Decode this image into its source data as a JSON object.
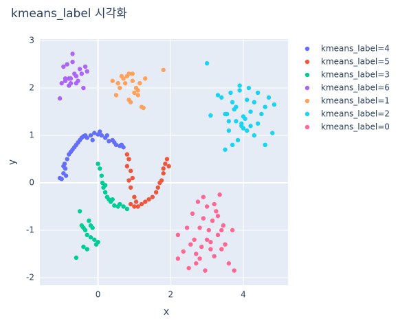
{
  "chart_data": {
    "type": "scatter",
    "title": "kmeans_label 시각화",
    "x_label": "x",
    "y_label": "y",
    "xlim": [
      -1.6,
      5.23
    ],
    "ylim": [
      -2.16,
      3.03
    ],
    "xticks": [
      0,
      2,
      4
    ],
    "yticks": [
      -2,
      -1,
      0,
      1,
      2,
      3
    ],
    "grid": true,
    "legend_position": "right",
    "series": [
      {
        "name": "kmeans_label=4",
        "color": "#636efa",
        "x": [
          -1.0,
          -0.95,
          -0.9,
          -0.92,
          -0.85,
          -0.8,
          -0.75,
          -0.7,
          -0.65,
          -0.6,
          -0.55,
          -0.5,
          -0.45,
          -0.4,
          -0.35,
          -0.3,
          -0.2,
          -0.15,
          -0.1,
          0,
          0.05,
          0.1,
          0.2,
          0.25,
          0.3,
          0.4,
          0.45,
          0.5,
          0.6,
          0.65,
          0.7,
          -1.05,
          -0.95,
          -0.88
        ],
        "y": [
          0.08,
          0.2,
          0.3,
          0.4,
          0.5,
          0.6,
          0.65,
          0.7,
          0.75,
          0.8,
          0.85,
          0.9,
          0.95,
          0.98,
          1.0,
          0.95,
          1.0,
          0.9,
          1.05,
          1.02,
          1.08,
          1.0,
          0.95,
          1.0,
          0.88,
          0.9,
          0.85,
          0.8,
          0.78,
          0.8,
          0.75,
          0.1,
          0.35,
          0.15
        ]
      },
      {
        "name": "kmeans_label=5",
        "color": "#EF553B",
        "x": [
          0.8,
          0.85,
          0.8,
          0.9,
          0.95,
          0.85,
          0.9,
          1.0,
          1.05,
          1.1,
          1.2,
          1.3,
          1.4,
          1.5,
          1.6,
          1.65,
          1.7,
          1.8,
          1.85,
          1.75,
          1.9,
          1.95,
          1.8,
          1.0,
          0.9
        ],
        "y": [
          0.6,
          0.5,
          0.35,
          0.25,
          0.1,
          0.05,
          -0.1,
          -0.3,
          -0.4,
          -0.5,
          -0.45,
          -0.4,
          -0.35,
          -0.3,
          -0.2,
          -0.1,
          0.0,
          0.2,
          0.4,
          0.05,
          0.5,
          0.35,
          0.3,
          -0.5,
          -0.45
        ]
      },
      {
        "name": "kmeans_label=3",
        "color": "#00cc96",
        "x": [
          0.0,
          0.05,
          0.1,
          0.12,
          0.15,
          0.2,
          0.25,
          0.3,
          0.35,
          0.45,
          0.55,
          0.6,
          0.7,
          0.8,
          0.4,
          0.2,
          -0.5,
          -0.45,
          -0.4,
          -0.35,
          -0.3,
          -0.25,
          -0.2,
          -0.15,
          -0.1,
          -0.05,
          -0.3,
          -0.4,
          -0.6,
          -0.2,
          0.0
        ],
        "y": [
          0.4,
          0.3,
          0.15,
          0.0,
          -0.1,
          -0.2,
          -0.3,
          -0.35,
          -0.4,
          -0.48,
          -0.5,
          -0.45,
          -0.5,
          -0.55,
          -0.35,
          -0.05,
          -0.6,
          -0.9,
          -0.95,
          -1.0,
          -1.1,
          -0.8,
          -0.9,
          -0.95,
          -1.2,
          -1.3,
          -1.4,
          -1.35,
          -1.58,
          -1.15,
          -1.25
        ]
      },
      {
        "name": "kmeans_label=6",
        "color": "#ab63fa",
        "x": [
          -1.05,
          -1.0,
          -0.95,
          -0.9,
          -0.85,
          -0.8,
          -0.75,
          -0.7,
          -0.65,
          -0.6,
          -0.55,
          -0.5,
          -0.45,
          -0.4,
          -0.35,
          -0.3,
          -0.8,
          -0.7,
          -0.9,
          -0.6,
          -0.75
        ],
        "y": [
          1.78,
          2.1,
          2.45,
          2.15,
          2.5,
          2.05,
          2.2,
          2.72,
          2.3,
          2.1,
          2.15,
          2.4,
          2.3,
          2.0,
          2.45,
          2.35,
          2.2,
          2.55,
          2.2,
          2.25,
          2.1
        ]
      },
      {
        "name": "kmeans_label=1",
        "color": "#FFA15A",
        "x": [
          0.4,
          0.5,
          0.6,
          0.7,
          0.8,
          0.85,
          0.9,
          0.95,
          1.0,
          1.05,
          1.1,
          1.15,
          1.2,
          1.25,
          0.75,
          0.65,
          0.95,
          1.8,
          1.3,
          0.55,
          0.85,
          1.1
        ],
        "y": [
          2.15,
          1.85,
          2.0,
          2.2,
          2.25,
          1.75,
          1.7,
          2.3,
          1.9,
          2.0,
          1.85,
          2.1,
          1.6,
          1.58,
          2.1,
          2.25,
          2.15,
          2.38,
          2.2,
          2.1,
          2.3,
          1.95
        ]
      },
      {
        "name": "kmeans_label=2",
        "color": "#19d3f3",
        "x": [
          3.0,
          3.1,
          3.3,
          3.4,
          3.5,
          3.55,
          3.6,
          3.65,
          3.7,
          3.75,
          3.8,
          3.85,
          3.9,
          3.95,
          4.0,
          4.05,
          4.1,
          4.15,
          4.2,
          4.3,
          4.4,
          4.5,
          4.6,
          4.7,
          4.8,
          4.85,
          3.6,
          3.9,
          4.0,
          4.2,
          4.4,
          4.6,
          3.7,
          3.95,
          4.1,
          4.3,
          3.5,
          3.8
        ],
        "y": [
          2.52,
          1.42,
          1.85,
          1.8,
          0.7,
          1.45,
          1.3,
          1.9,
          0.8,
          1.55,
          1.6,
          0.9,
          2.05,
          1.2,
          1.15,
          1.35,
          1.1,
          2.0,
          1.5,
          1.7,
          1.25,
          1.45,
          1.6,
          1.8,
          1.05,
          1.65,
          1.1,
          1.95,
          1.4,
          1.2,
          1.9,
          0.8,
          1.7,
          1.25,
          1.75,
          1.0,
          1.45,
          1.3
        ]
      },
      {
        "name": "kmeans_label=0",
        "color": "#FF6692",
        "x": [
          2.2,
          2.35,
          2.45,
          2.5,
          2.6,
          2.65,
          2.7,
          2.75,
          2.8,
          2.85,
          2.9,
          2.95,
          3.0,
          3.05,
          3.1,
          3.15,
          3.2,
          3.25,
          3.3,
          3.35,
          3.4,
          3.45,
          3.5,
          3.6,
          3.7,
          3.75,
          2.2,
          2.55,
          3.0,
          3.2,
          2.9,
          2.7,
          3.4,
          3.1,
          2.8,
          3.3
        ],
        "y": [
          -1.1,
          -1.45,
          -0.95,
          -1.8,
          -0.65,
          -1.2,
          -1.5,
          -0.4,
          -0.95,
          -1.35,
          -0.3,
          -1.85,
          -0.5,
          -1.0,
          -1.25,
          -0.8,
          -1.55,
          -0.6,
          -1.1,
          -0.25,
          -1.4,
          -0.9,
          -1.3,
          -1.7,
          -1.0,
          -1.85,
          -1.6,
          -1.3,
          -1.2,
          -0.45,
          -0.75,
          -1.7,
          -1.0,
          -1.4,
          -1.6,
          -0.7
        ]
      }
    ]
  }
}
